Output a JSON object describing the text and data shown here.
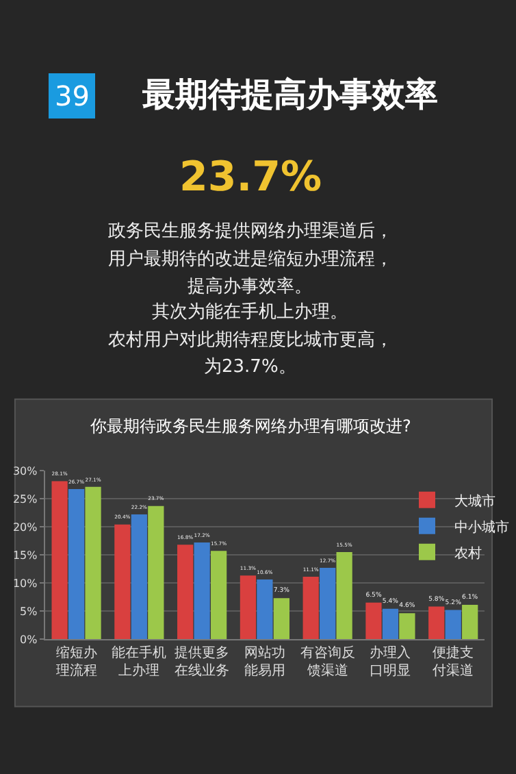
{
  "chart_data": {
    "type": "bar",
    "title": "你最期待政务民生服务网络办理有哪项改进?",
    "annotations": [
      "39",
      "最期待提高办事效率",
      "23.7%",
      "政务民生服务提供网络办理渠道后，",
      "用户最期待的改进是缩短办理流程，",
      "提高办事效率。",
      "其次为能在手机上办理。",
      "农村用户对此期待程度比城市更高，",
      "为23.7%。"
    ],
    "categories": [
      "缩短办理流程",
      "能在手机上办理",
      "提供更多在线业务",
      "网站功能易用",
      "有咨询反馈渠道",
      "办理入口明显",
      "便捷支付渠道"
    ],
    "series": [
      {
        "name": "大城市",
        "color": "#d9403f",
        "values": [
          28.1,
          20.4,
          16.8,
          11.3,
          11.1,
          6.5,
          5.8
        ],
        "value_labels": [
          "28.1%",
          "20.4%",
          "16.8%",
          "11.3%",
          "11.1%",
          "6.5%",
          "5.8%"
        ]
      },
      {
        "name": "中小城市",
        "color": "#3f7fcf",
        "values": [
          26.7,
          22.2,
          17.2,
          10.6,
          12.7,
          5.4,
          5.2
        ],
        "value_labels": [
          "26.7%",
          "22.2%",
          "17.2%",
          "10.6%",
          "12.7%",
          "5.4%",
          "5.2%"
        ]
      },
      {
        "name": "农村",
        "color": "#9cc84a",
        "values": [
          27.1,
          23.7,
          15.7,
          7.3,
          15.5,
          4.6,
          6.1
        ],
        "value_labels": [
          "27.1%",
          "23.7%",
          "15.7%",
          "7.3%",
          "15.5%",
          "4.6%",
          "6.1%"
        ]
      }
    ],
    "ylim": [
      0,
      30
    ],
    "yticks": [
      {
        "value": 0,
        "label": "0%"
      },
      {
        "value": 5,
        "label": "5%"
      },
      {
        "value": 10,
        "label": "10%"
      },
      {
        "value": 15,
        "label": "15%"
      },
      {
        "value": 20,
        "label": "20%"
      },
      {
        "value": 25,
        "label": "25%"
      },
      {
        "value": 30,
        "label": "30%"
      }
    ],
    "grid": "y",
    "legend": "right"
  }
}
